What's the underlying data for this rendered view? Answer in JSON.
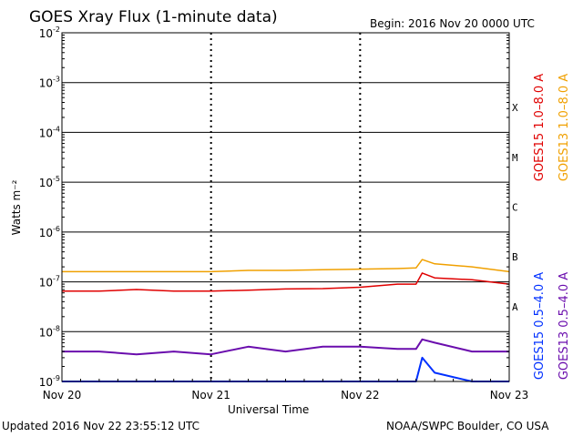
{
  "header": {
    "title": "GOES Xray Flux (1-minute data)",
    "begin": "Begin:  2016 Nov 20 0000 UTC"
  },
  "footer": {
    "updated": "Updated 2016 Nov 22 23:55:12 UTC",
    "credit": "NOAA/SWPC Boulder, CO USA"
  },
  "colors": {
    "goes15_long": "#e00000",
    "goes13_long": "#f0a000",
    "goes15_short": "#0030ff",
    "goes13_short": "#6a0dad"
  },
  "chart_data": {
    "type": "line",
    "title": "GOES Xray Flux (1-minute data)",
    "xlabel": "Universal Time",
    "ylabel": "Watts m⁻²",
    "y_scale": "log",
    "ylim": [
      1e-09,
      0.01
    ],
    "y_ticks": [
      {
        "base": "10",
        "exp": "-2"
      },
      {
        "base": "10",
        "exp": "-3"
      },
      {
        "base": "10",
        "exp": "-4"
      },
      {
        "base": "10",
        "exp": "-5"
      },
      {
        "base": "10",
        "exp": "-6"
      },
      {
        "base": "10",
        "exp": "-7"
      },
      {
        "base": "10",
        "exp": "-8"
      },
      {
        "base": "10",
        "exp": "-9"
      }
    ],
    "x_ticks": [
      "Nov 20",
      "Nov 21",
      "Nov 22",
      "Nov 23"
    ],
    "xlim": [
      "2016-11-20 00:00",
      "2016-11-23 00:00"
    ],
    "flare_classes": [
      "X",
      "M",
      "C",
      "B",
      "A"
    ],
    "grid": true,
    "legend_position": "right",
    "series": [
      {
        "name": "GOES15 1.0–8.0 A",
        "x": [
          "2016-11-20 00:00",
          "2016-11-20 06:00",
          "2016-11-20 12:00",
          "2016-11-20 18:00",
          "2016-11-21 00:00",
          "2016-11-21 06:00",
          "2016-11-21 12:00",
          "2016-11-21 18:00",
          "2016-11-22 00:00",
          "2016-11-22 06:00",
          "2016-11-22 09:00",
          "2016-11-22 10:00",
          "2016-11-22 12:00",
          "2016-11-22 18:00",
          "2016-11-23 00:00"
        ],
        "values": [
          6.5e-08,
          6.5e-08,
          7e-08,
          6.5e-08,
          6.5e-08,
          6.8e-08,
          7.2e-08,
          7.3e-08,
          7.8e-08,
          9e-08,
          9e-08,
          1.5e-07,
          1.2e-07,
          1.1e-07,
          9e-08
        ]
      },
      {
        "name": "GOES13 1.0–8.0 A",
        "x": [
          "2016-11-20 00:00",
          "2016-11-20 06:00",
          "2016-11-20 12:00",
          "2016-11-20 18:00",
          "2016-11-21 00:00",
          "2016-11-21 06:00",
          "2016-11-21 12:00",
          "2016-11-21 18:00",
          "2016-11-22 00:00",
          "2016-11-22 06:00",
          "2016-11-22 09:00",
          "2016-11-22 10:00",
          "2016-11-22 12:00",
          "2016-11-22 18:00",
          "2016-11-23 00:00"
        ],
        "values": [
          1.6e-07,
          1.6e-07,
          1.6e-07,
          1.6e-07,
          1.6e-07,
          1.7e-07,
          1.7e-07,
          1.75e-07,
          1.8e-07,
          1.85e-07,
          1.9e-07,
          2.8e-07,
          2.3e-07,
          2e-07,
          1.6e-07
        ]
      },
      {
        "name": "GOES15 0.5–4.0 A",
        "x": [
          "2016-11-20 00:00",
          "2016-11-20 12:00",
          "2016-11-21 00:00",
          "2016-11-21 12:00",
          "2016-11-22 00:00",
          "2016-11-22 09:00",
          "2016-11-22 10:00",
          "2016-11-22 12:00",
          "2016-11-22 18:00",
          "2016-11-23 00:00"
        ],
        "values": [
          1e-09,
          1e-09,
          1e-09,
          1e-09,
          1e-09,
          1e-09,
          3e-09,
          1.5e-09,
          1e-09,
          1e-09
        ]
      },
      {
        "name": "GOES13 0.5–4.0 A",
        "x": [
          "2016-11-20 00:00",
          "2016-11-20 06:00",
          "2016-11-20 12:00",
          "2016-11-20 18:00",
          "2016-11-21 00:00",
          "2016-11-21 06:00",
          "2016-11-21 12:00",
          "2016-11-21 18:00",
          "2016-11-22 00:00",
          "2016-11-22 06:00",
          "2016-11-22 09:00",
          "2016-11-22 10:00",
          "2016-11-22 12:00",
          "2016-11-22 18:00",
          "2016-11-23 00:00"
        ],
        "values": [
          4e-09,
          4e-09,
          3.5e-09,
          4e-09,
          3.5e-09,
          5e-09,
          4e-09,
          5e-09,
          5e-09,
          4.5e-09,
          4.5e-09,
          7e-09,
          6e-09,
          4e-09,
          4e-09
        ]
      }
    ]
  }
}
